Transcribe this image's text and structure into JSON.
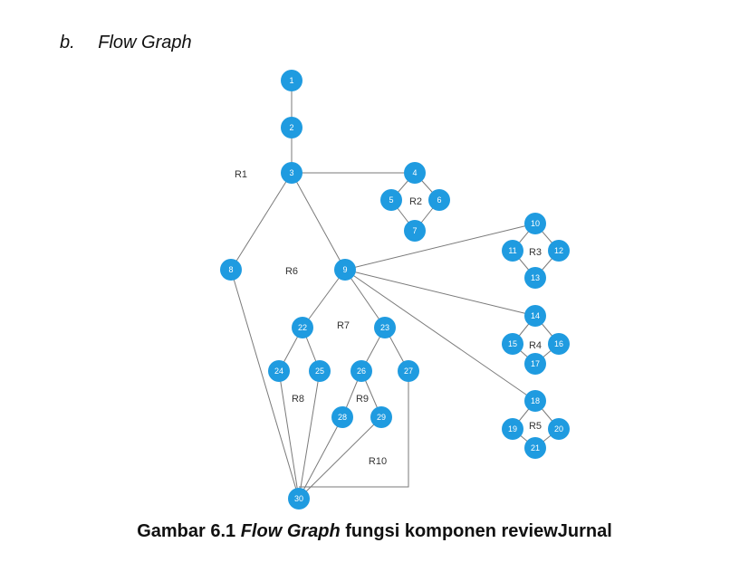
{
  "heading": {
    "letter": "b.",
    "title": "Flow Graph"
  },
  "caption": {
    "prefix": "Gambar 6.1 ",
    "italic": "Flow Graph",
    "suffix": " fungsi komponen reviewJurnal"
  },
  "colors": {
    "node": "#1f9be0",
    "edge": "#7a7a7a",
    "region_text": "#333333"
  },
  "nodes": [
    "1",
    "2",
    "3",
    "4",
    "5",
    "6",
    "7",
    "8",
    "9",
    "10",
    "11",
    "12",
    "13",
    "14",
    "15",
    "16",
    "17",
    "18",
    "19",
    "20",
    "21",
    "22",
    "23",
    "24",
    "25",
    "26",
    "27",
    "28",
    "29",
    "30"
  ],
  "edges": [
    [
      "1",
      "2"
    ],
    [
      "2",
      "3"
    ],
    [
      "3",
      "4"
    ],
    [
      "4",
      "5"
    ],
    [
      "4",
      "6"
    ],
    [
      "5",
      "7"
    ],
    [
      "6",
      "7"
    ],
    [
      "3",
      "8"
    ],
    [
      "3",
      "9"
    ],
    [
      "8",
      "30"
    ],
    [
      "9",
      "10"
    ],
    [
      "10",
      "11"
    ],
    [
      "10",
      "12"
    ],
    [
      "11",
      "13"
    ],
    [
      "12",
      "13"
    ],
    [
      "9",
      "14"
    ],
    [
      "14",
      "15"
    ],
    [
      "14",
      "16"
    ],
    [
      "15",
      "17"
    ],
    [
      "16",
      "17"
    ],
    [
      "9",
      "18"
    ],
    [
      "18",
      "19"
    ],
    [
      "18",
      "20"
    ],
    [
      "19",
      "21"
    ],
    [
      "20",
      "21"
    ],
    [
      "9",
      "22"
    ],
    [
      "9",
      "23"
    ],
    [
      "22",
      "24"
    ],
    [
      "22",
      "25"
    ],
    [
      "23",
      "26"
    ],
    [
      "23",
      "27"
    ],
    [
      "26",
      "28"
    ],
    [
      "26",
      "29"
    ],
    [
      "24",
      "30"
    ],
    [
      "25",
      "30"
    ],
    [
      "28",
      "30"
    ],
    [
      "29",
      "30"
    ],
    [
      "27",
      "30"
    ]
  ],
  "regions": [
    "R1",
    "R2",
    "R3",
    "R4",
    "R5",
    "R6",
    "R7",
    "R8",
    "R9",
    "R10"
  ]
}
